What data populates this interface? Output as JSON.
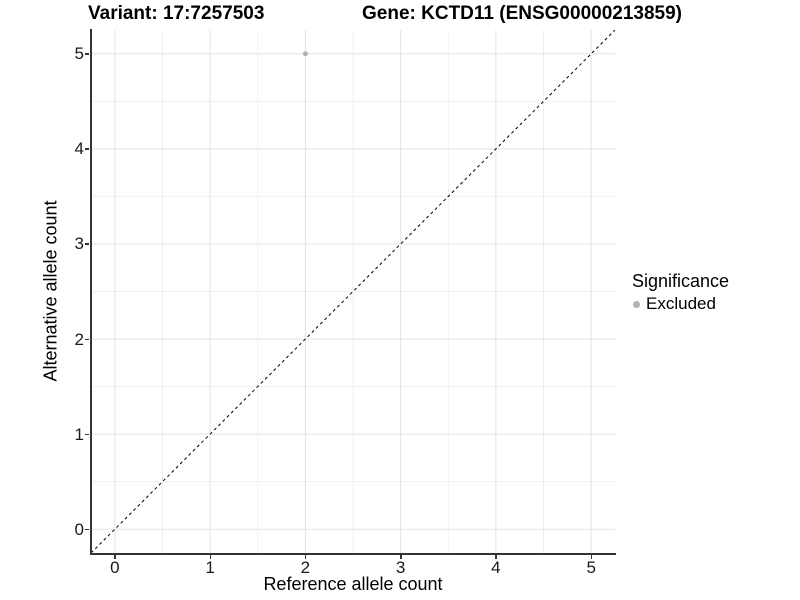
{
  "chart_data": {
    "type": "scatter",
    "title_left": "Variant: 17:7257503",
    "title_right": "Gene: KCTD11 (ENSG00000213859)",
    "xlabel": "Reference allele count",
    "ylabel": "Alternative allele count",
    "xlim": [
      -0.25,
      5.25
    ],
    "ylim": [
      -0.25,
      5.25
    ],
    "xticks": [
      0,
      1,
      2,
      3,
      4,
      5
    ],
    "yticks": [
      0,
      1,
      2,
      3,
      4,
      5
    ],
    "minor_xticks": [
      0.5,
      1.5,
      2.5,
      3.5,
      4.5
    ],
    "minor_yticks": [
      0.5,
      1.5,
      2.5,
      3.5,
      4.5
    ],
    "grid": true,
    "reference_line": {
      "equation": "y = x",
      "style": "dashed",
      "color": "#000000"
    },
    "series": [
      {
        "name": "Excluded",
        "color": "#b3b3b3",
        "marker": "circle",
        "points": [
          {
            "x": 2,
            "y": 5
          }
        ]
      }
    ],
    "legend": {
      "title": "Significance",
      "position": "right",
      "items": [
        {
          "label": "Excluded",
          "color": "#b3b3b3"
        }
      ]
    },
    "colors": {
      "major_grid": "#e3e3e3",
      "minor_grid": "#f0f0f0",
      "axis_line": "#333333",
      "background": "#ffffff",
      "text": "#000000"
    }
  }
}
